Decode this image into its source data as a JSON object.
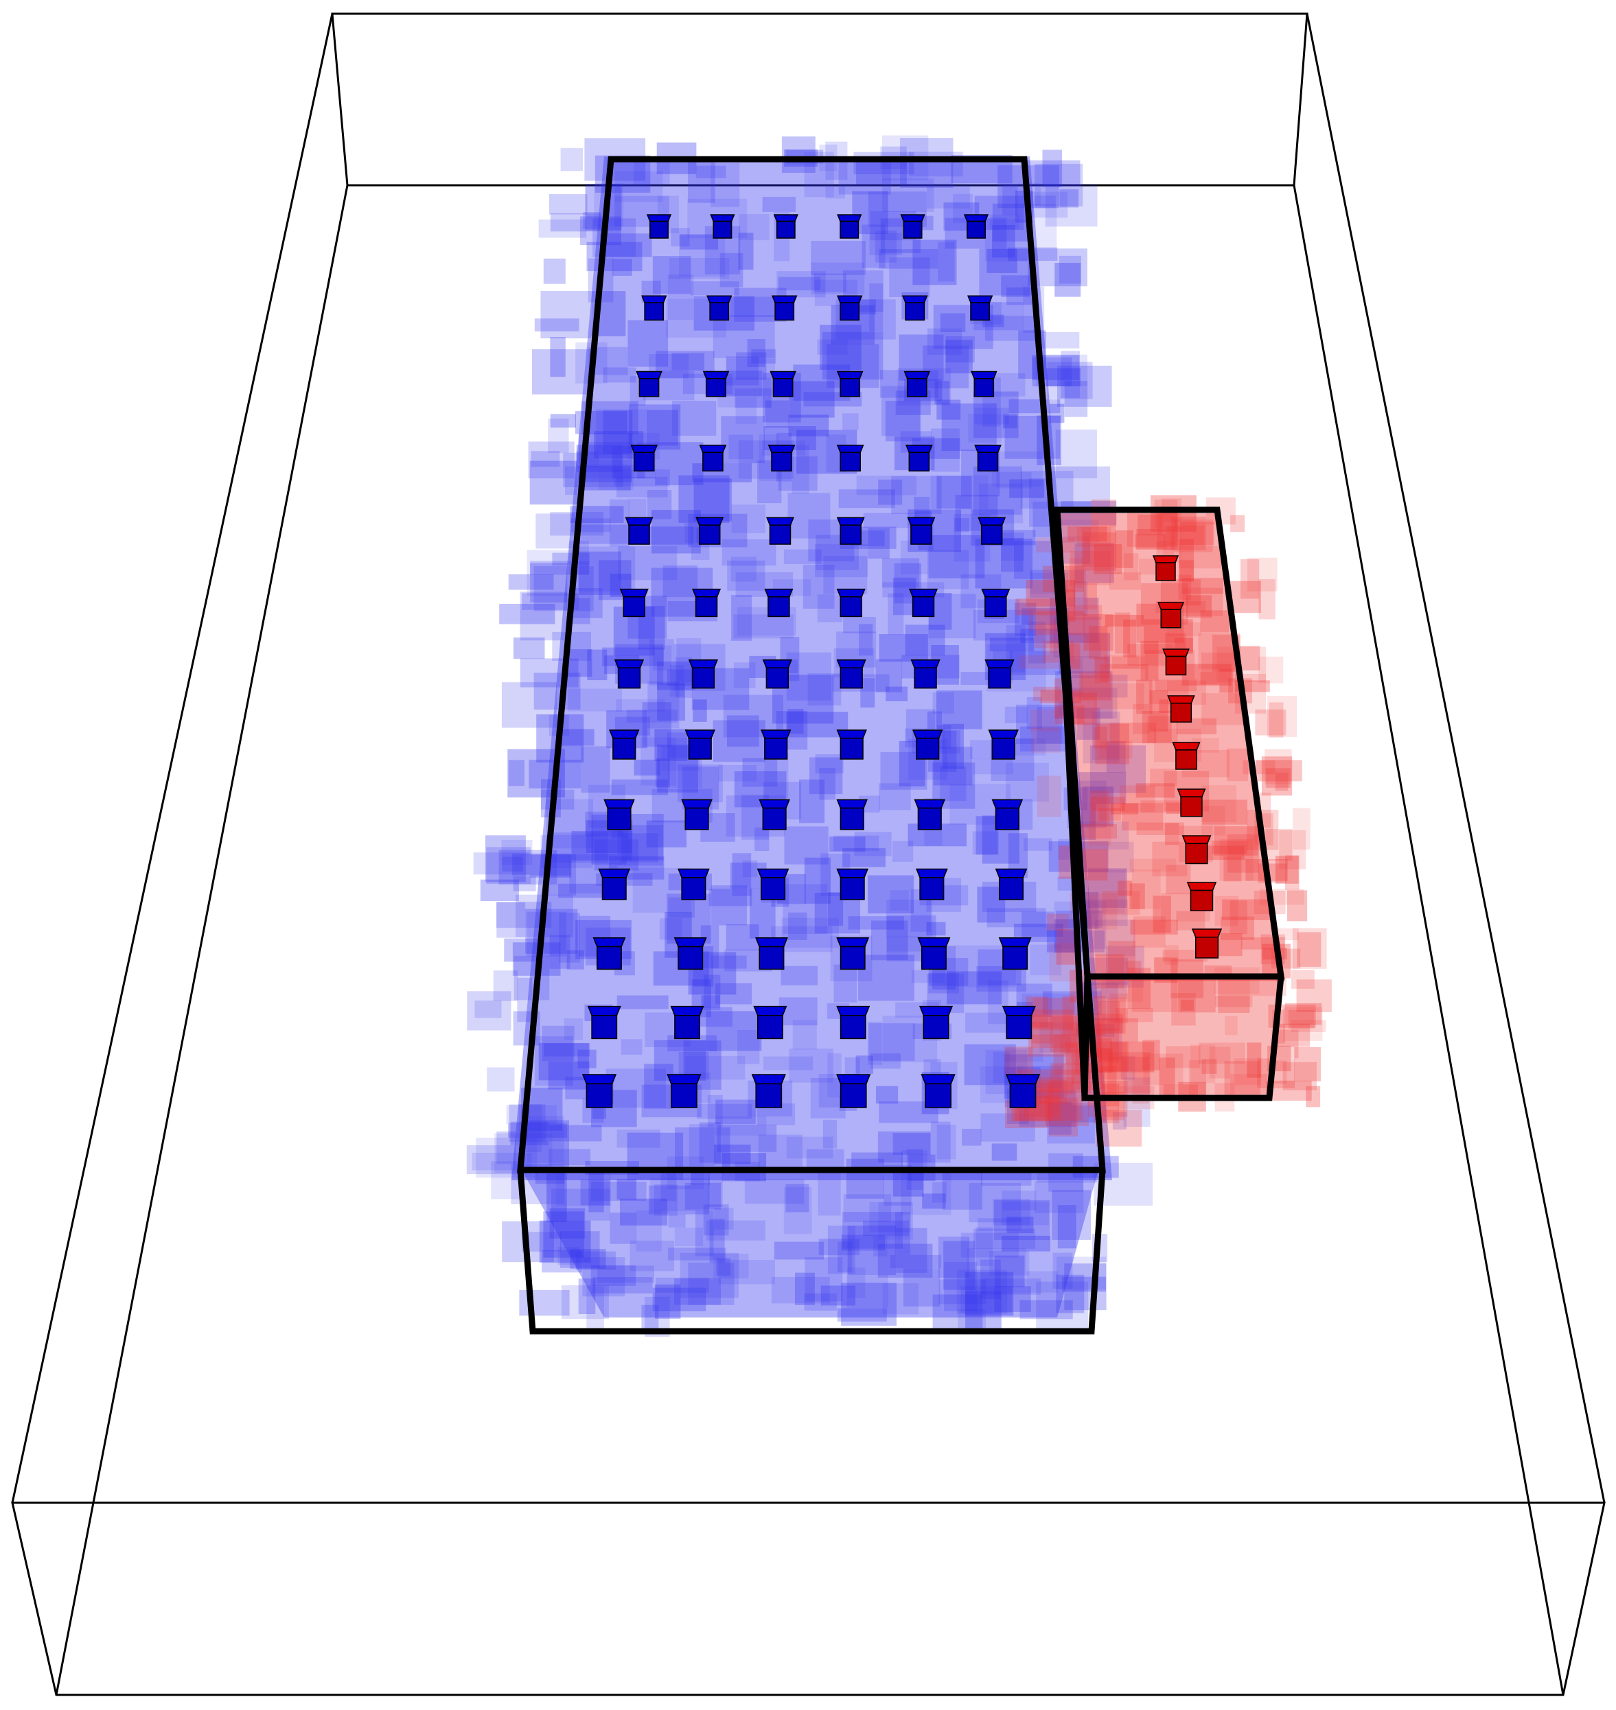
{
  "scene": {
    "colors": {
      "background": "#ffffff",
      "frame": "#000000",
      "blue_solid": "#0000dd",
      "blue_cloud": "#3333ee",
      "red_solid": "#dd0000",
      "red_cloud": "#ee3333"
    },
    "blue_block": {
      "voxel_grid": {
        "columns": 6,
        "rows": 13
      }
    },
    "red_block": {
      "voxel_grid": {
        "columns": 1,
        "rows": 9
      }
    }
  }
}
